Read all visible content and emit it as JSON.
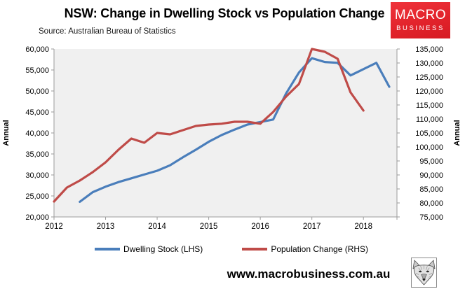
{
  "header": {
    "title": "NSW: Change in Dwelling Stock vs Population Change",
    "source": "Source: Australian Bureau of Statistics",
    "logo": {
      "line1": "MACRO",
      "line2": "BUSINESS",
      "bg_color": "#e2232b",
      "text_color": "#ffffff"
    }
  },
  "chart_data": {
    "type": "line",
    "title": "NSW: Change in Dwelling Stock vs Population Change",
    "x_tick_labels": [
      "2012",
      "2013",
      "2014",
      "2015",
      "2016",
      "2017",
      "2018"
    ],
    "x_range": [
      2012.0,
      2018.65
    ],
    "grid": false,
    "plot_bg": "#f0f0f0",
    "axis_color": "#9b9b9b",
    "legend_position": "bottom",
    "left_axis": {
      "label": "Annual",
      "min": 20000,
      "max": 60000,
      "step": 5000,
      "tick_labels": [
        "60,000",
        "55,000",
        "50,000",
        "45,000",
        "40,000",
        "35,000",
        "30,000",
        "25,000",
        "20,000"
      ]
    },
    "right_axis": {
      "label": "Annual",
      "min": 75000,
      "max": 135000,
      "step": 5000,
      "tick_labels": [
        "135,000",
        "130,000",
        "125,000",
        "120,000",
        "115,000",
        "110,000",
        "105,000",
        "100,000",
        "95,000",
        "90,000",
        "85,000",
        "80,000",
        "75,000"
      ]
    },
    "series": [
      {
        "name": "Dwelling Stock (LHS)",
        "axis": "left",
        "color": "#4a7ebb",
        "x": [
          2012.5,
          2012.75,
          2013.0,
          2013.25,
          2013.5,
          2013.75,
          2014.0,
          2014.25,
          2014.5,
          2014.75,
          2015.0,
          2015.25,
          2015.5,
          2015.75,
          2016.0,
          2016.25,
          2016.5,
          2016.75,
          2017.0,
          2017.25,
          2017.5,
          2017.75,
          2018.0,
          2018.25,
          2018.5
        ],
        "values": [
          23600,
          25900,
          27200,
          28300,
          29200,
          30100,
          31000,
          32300,
          34200,
          36000,
          37900,
          39500,
          40800,
          42000,
          42600,
          43200,
          49400,
          54400,
          57800,
          56900,
          56700,
          53700,
          55200,
          56700,
          51000
        ]
      },
      {
        "name": "Population Change (RHS)",
        "axis": "right",
        "color": "#bf4b48",
        "x": [
          2012.0,
          2012.25,
          2012.5,
          2012.75,
          2013.0,
          2013.25,
          2013.5,
          2013.75,
          2014.0,
          2014.25,
          2014.5,
          2014.75,
          2015.0,
          2015.25,
          2015.5,
          2015.75,
          2016.0,
          2016.25,
          2016.5,
          2016.75,
          2017.0,
          2017.25,
          2017.5,
          2017.75,
          2018.0
        ],
        "values": [
          80500,
          85500,
          88000,
          91000,
          94500,
          99000,
          103000,
          101500,
          105000,
          104500,
          106000,
          107500,
          108000,
          108300,
          109000,
          109000,
          108300,
          112500,
          118000,
          122500,
          135000,
          134000,
          131500,
          119500,
          113000
        ]
      }
    ]
  },
  "footer": {
    "url": "www.macrobusiness.com.au",
    "wolf_logo": "wolf-emblem"
  }
}
